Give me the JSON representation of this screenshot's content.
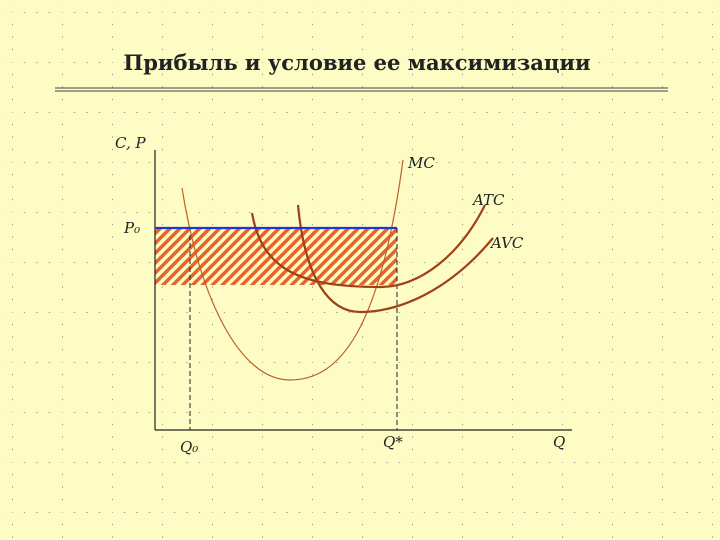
{
  "title": "Прибыль и условие ее максимизации",
  "axes": {
    "y_label": "C, P",
    "x_label": "Q"
  },
  "curves": [
    {
      "label": "MC"
    },
    {
      "label": "ATC"
    },
    {
      "label": "AVC"
    }
  ],
  "points": {
    "price": "P₀",
    "q0": "Q₀",
    "q_star": "Q*"
  }
}
